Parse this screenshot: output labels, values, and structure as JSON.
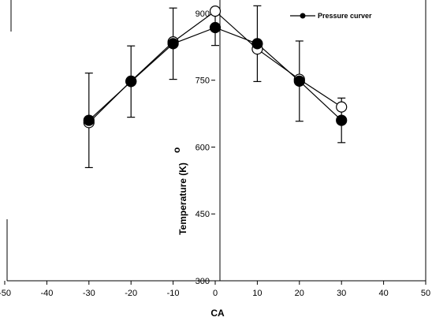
{
  "chart_data": {
    "type": "line",
    "title": "",
    "xlabel": "CA",
    "ylabel": "Temperature (K)",
    "ylabel_superscript": "o",
    "xlim": [
      -50,
      50
    ],
    "ylim": [
      300,
      930
    ],
    "x_ticks": [
      -50,
      -40,
      -30,
      -20,
      -10,
      0,
      10,
      20,
      30,
      40,
      50
    ],
    "x_tick_labels": [
      "-50",
      "-40",
      "-30",
      "-20",
      "-10",
      "0",
      "10",
      "20",
      "30",
      "40",
      "50"
    ],
    "y_ticks": [
      300,
      450,
      600,
      750,
      900
    ],
    "y_tick_labels": [
      "300",
      "450",
      "600",
      "750",
      "900"
    ],
    "x": [
      -30,
      -20,
      -10,
      0,
      10,
      20,
      30
    ],
    "series": [
      {
        "name": "Pressure curver",
        "marker": "filled-circle",
        "values": [
          660,
          747,
          832,
          868,
          832,
          748,
          660
        ],
        "error": [
          106,
          80,
          80,
          40,
          85,
          90,
          50
        ]
      },
      {
        "name": "",
        "marker": "open-circle",
        "values": [
          655,
          748,
          836,
          905,
          820,
          752,
          690
        ],
        "error": [
          0,
          0,
          0,
          0,
          0,
          0,
          0
        ]
      }
    ],
    "legend_position": "top-right",
    "grid": false
  }
}
